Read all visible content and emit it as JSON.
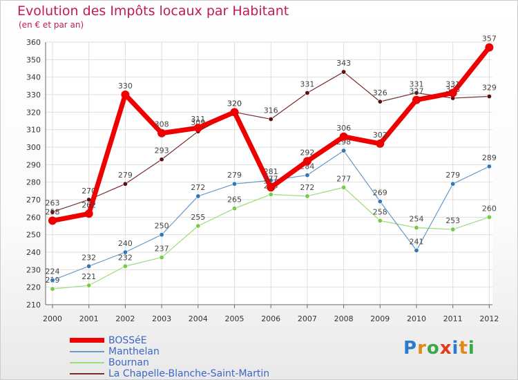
{
  "chart_data": {
    "type": "line",
    "title": "Evolution des Impôts locaux par Habitant",
    "subtitle": "(en € et par an)",
    "categories": [
      "2000",
      "2001",
      "2002",
      "2003",
      "2004",
      "2005",
      "2006",
      "2007",
      "2008",
      "2009",
      "2010",
      "2011",
      "2012"
    ],
    "ylim": [
      210,
      360
    ],
    "yticks": [
      210,
      220,
      230,
      240,
      250,
      260,
      270,
      280,
      290,
      300,
      310,
      320,
      330,
      340,
      350,
      360
    ],
    "grid": true,
    "series": [
      {
        "name": "La Chapelle-Blanche-Saint-Martin",
        "color": "#7a2a2a",
        "width": 1.2,
        "markerColor": "#5a0f10",
        "values": [
          263,
          270,
          279,
          293,
          309,
          320,
          316,
          331,
          343,
          326,
          331,
          328,
          329
        ],
        "labels": [
          "263",
          "270",
          "279",
          "293",
          "309",
          "320",
          "316",
          "331",
          "343",
          "326",
          "331",
          "328",
          "329"
        ]
      },
      {
        "name": "Bournan",
        "color": "#99dd77",
        "width": 1.2,
        "markerColor": "#77cc44",
        "values": [
          219,
          221,
          232,
          237,
          255,
          265,
          273,
          272,
          277,
          258,
          254,
          253,
          260
        ],
        "labels": [
          "219",
          "221",
          "232",
          "237",
          "255",
          "265",
          "273",
          "272",
          "277",
          "258",
          "254",
          "253",
          "260"
        ]
      },
      {
        "name": "Manthelan",
        "color": "#6699cc",
        "width": 1.2,
        "markerColor": "#3377bb",
        "values": [
          224,
          232,
          240,
          250,
          272,
          279,
          281,
          284,
          298,
          269,
          241,
          279,
          289
        ],
        "labels": [
          "224",
          "232",
          "240",
          "250",
          "272",
          "279",
          "281",
          "284",
          "298",
          "269",
          "241",
          "279",
          "289"
        ]
      },
      {
        "name": "BOSSéE",
        "color": "#ee0000",
        "width": 7,
        "markerColor": "#ee0000",
        "values": [
          258,
          262,
          330,
          308,
          311,
          320,
          277,
          292,
          306,
          302,
          327,
          331,
          357
        ],
        "labels": [
          "258",
          "262",
          "330",
          "308",
          "311",
          "320",
          "277",
          "292",
          "306",
          "302",
          "327",
          "331",
          "357"
        ]
      }
    ],
    "legend": [
      "BOSSéE",
      "Manthelan",
      "Bournan",
      "La Chapelle-Blanche-Saint-Martin"
    ]
  },
  "legend_items": [
    {
      "label": "BOSSéE",
      "color": "#ee0000",
      "thickness": 7
    },
    {
      "label": "Manthelan",
      "color": "#6699cc",
      "thickness": 2
    },
    {
      "label": "Bournan",
      "color": "#99dd77",
      "thickness": 2
    },
    {
      "label": "La Chapelle-Blanche-Saint-Martin",
      "color": "#7a2a2a",
      "thickness": 2
    }
  ],
  "logo": {
    "text": "Proxiti",
    "letters": [
      "P",
      "r",
      "o",
      "x",
      "i",
      "t",
      "i"
    ],
    "colors": [
      "#2a7ad0",
      "#e2881a",
      "#3aa84a",
      "#e23b1b",
      "#2a7ad0",
      "#e2881a",
      "#3aa84a"
    ]
  }
}
